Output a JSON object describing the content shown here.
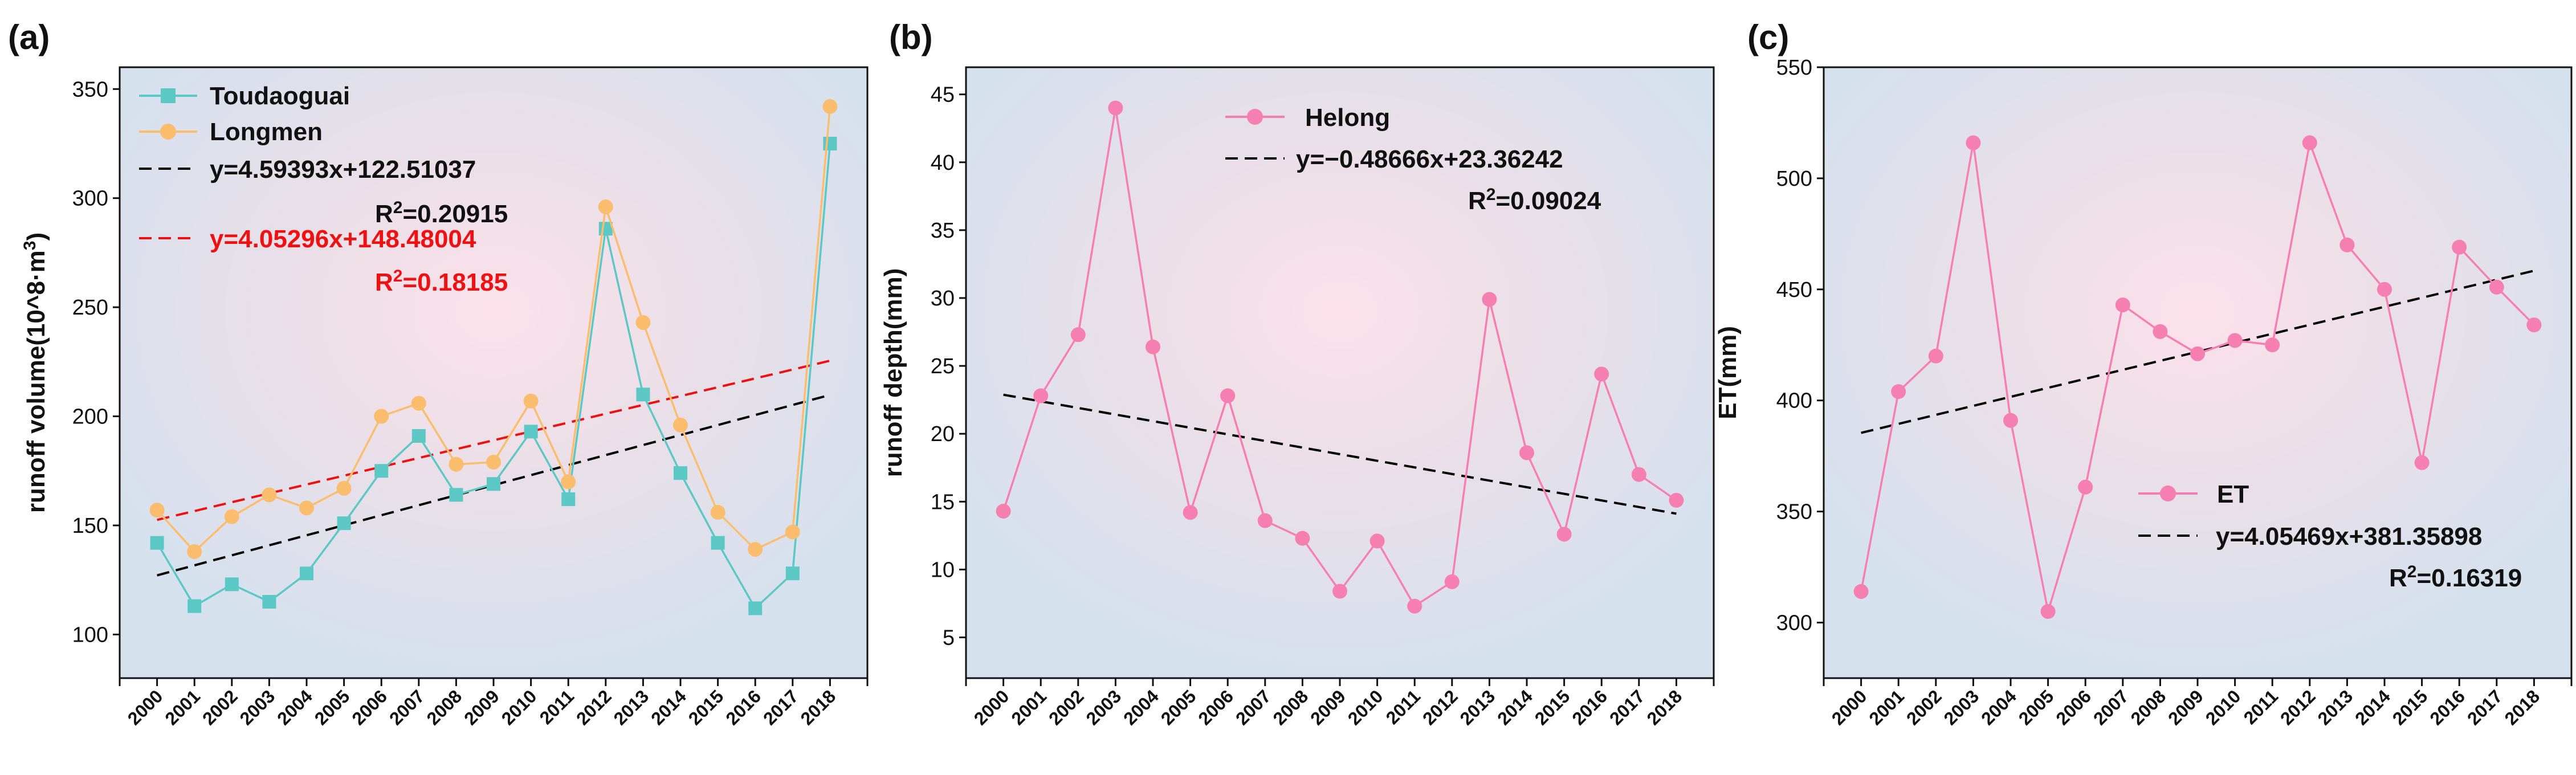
{
  "chart_data": [
    {
      "type": "line",
      "panel": "(a)",
      "ylabel": "runoff volume(10^8·m³)",
      "ylabel_base": "runoff volume(10^8·m",
      "ylabel_sup": "3",
      "ylabel_tail": ")",
      "xlabel": "",
      "ylim": [
        80,
        360
      ],
      "yticks": [
        100,
        150,
        200,
        250,
        300,
        350
      ],
      "x": [
        2000,
        2001,
        2002,
        2003,
        2004,
        2005,
        2006,
        2007,
        2008,
        2009,
        2010,
        2011,
        2012,
        2013,
        2014,
        2015,
        2016,
        2017,
        2018
      ],
      "series": [
        {
          "name": "Toudaoguai",
          "color": "#5cc8c6",
          "marker": "square",
          "values": [
            142,
            113,
            123,
            115,
            128,
            151,
            175,
            191,
            164,
            169,
            193,
            162,
            286,
            210,
            174,
            142,
            112,
            128,
            325
          ]
        },
        {
          "name": "Longmen",
          "color": "#f9bd6d",
          "marker": "circle",
          "values": [
            157,
            138,
            154,
            164,
            158,
            167,
            200,
            206,
            178,
            179,
            207,
            170,
            296,
            243,
            196,
            156,
            139,
            147,
            342
          ]
        }
      ],
      "fits": [
        {
          "label": "y=4.59393x+122.51037",
          "r2_text": "R",
          "r2_sup": "2",
          "r2_value": "=0.20915",
          "color": "#000000",
          "slope": 4.59393,
          "intercept": 122.51037
        },
        {
          "label": "y=4.05296x+148.48004",
          "r2_text": "R",
          "r2_sup": "2",
          "r2_value": "=0.18185",
          "color": "#ee1111",
          "slope": 4.05296,
          "intercept": 148.48004
        }
      ]
    },
    {
      "type": "line",
      "panel": "(b)",
      "ylabel": "runoff depth(mm)",
      "xlabel": "",
      "ylim": [
        2,
        47
      ],
      "yticks": [
        5,
        10,
        15,
        20,
        25,
        30,
        35,
        40,
        45
      ],
      "x": [
        2000,
        2001,
        2002,
        2003,
        2004,
        2005,
        2006,
        2007,
        2008,
        2009,
        2010,
        2011,
        2012,
        2013,
        2014,
        2015,
        2016,
        2017,
        2018
      ],
      "series": [
        {
          "name": "Helong",
          "color": "#f57fb1",
          "marker": "circle",
          "values": [
            14.3,
            22.8,
            27.3,
            44.0,
            26.4,
            14.2,
            22.8,
            13.6,
            12.3,
            8.4,
            12.1,
            7.3,
            9.1,
            29.9,
            18.6,
            12.6,
            24.4,
            17.0,
            15.1
          ]
        }
      ],
      "fits": [
        {
          "label": "y=−0.48666x+23.36242",
          "r2_text": "R",
          "r2_sup": "2",
          "r2_value": "=0.09024",
          "color": "#000000",
          "slope": -0.48666,
          "intercept": 23.36242
        }
      ]
    },
    {
      "type": "line",
      "panel": "(c)",
      "ylabel": "ET(mm)",
      "xlabel": "",
      "ylim": [
        275,
        550
      ],
      "yticks": [
        300,
        350,
        400,
        450,
        500,
        550
      ],
      "x": [
        2000,
        2001,
        2002,
        2003,
        2004,
        2005,
        2006,
        2007,
        2008,
        2009,
        2010,
        2011,
        2012,
        2013,
        2014,
        2015,
        2016,
        2017,
        2018
      ],
      "series": [
        {
          "name": "ET",
          "color": "#f57fb1",
          "marker": "circle",
          "values": [
            314,
            404,
            420,
            516,
            391,
            305,
            361,
            443,
            431,
            421,
            427,
            425,
            516,
            470,
            450,
            372,
            469,
            451,
            434
          ]
        }
      ],
      "fits": [
        {
          "label": "y=4.05469x+381.35898",
          "r2_text": "R",
          "r2_sup": "2",
          "r2_value": "=0.16319",
          "color": "#000000",
          "slope": 4.05469,
          "intercept": 381.35898
        }
      ]
    }
  ]
}
